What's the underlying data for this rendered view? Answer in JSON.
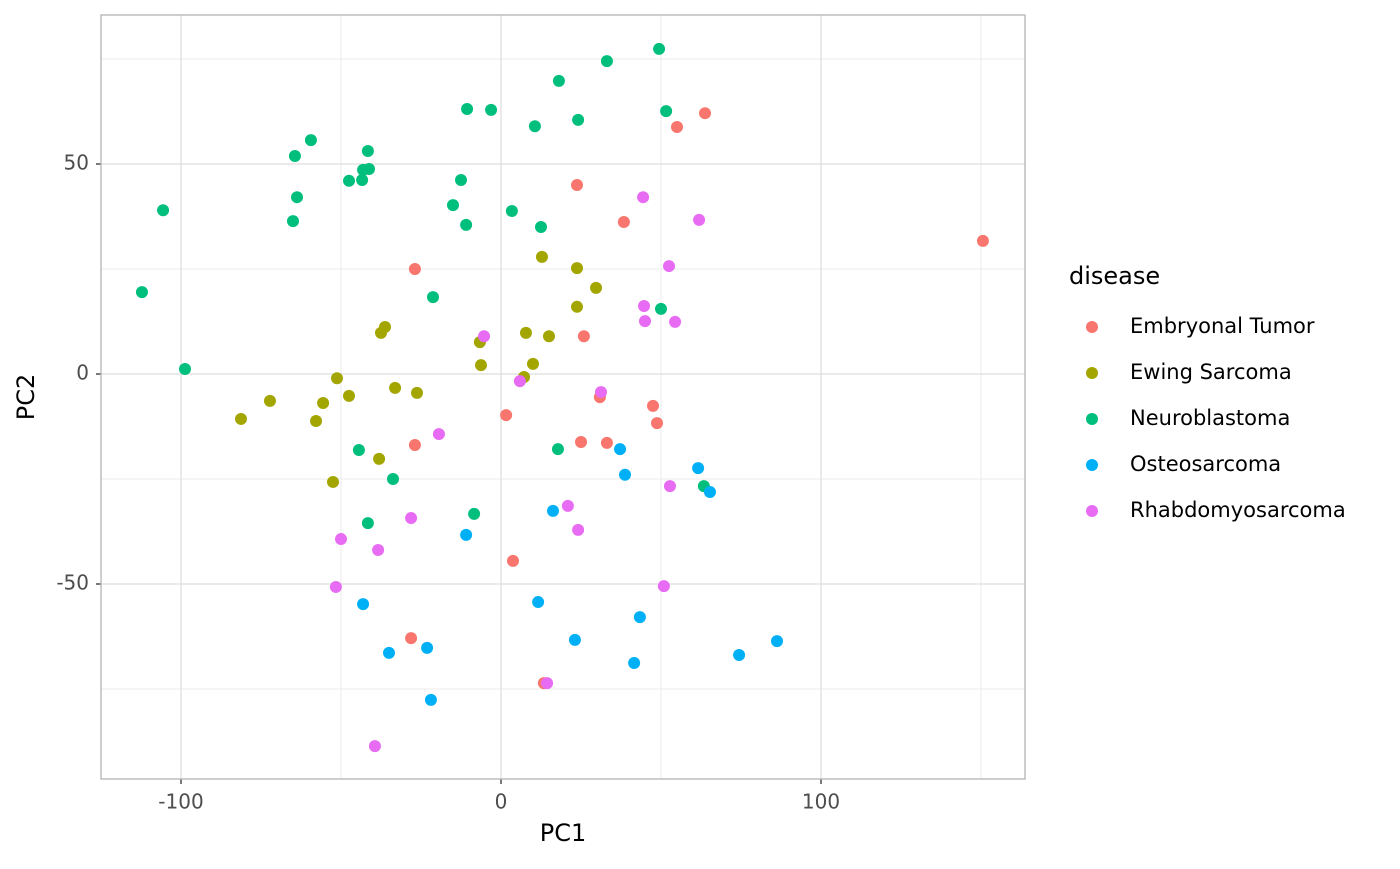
{
  "chart_data": {
    "type": "scatter",
    "x_label": "PC1",
    "y_label": "PC2",
    "legend_title": "disease",
    "legend": "right",
    "xlim": [
      -125,
      163.75
    ],
    "ylim": [
      -96.43,
      85.48
    ],
    "xticks": [
      -100,
      0,
      100
    ],
    "yticks": [
      -50,
      0,
      50
    ],
    "x_minor_grid": [
      -50,
      50,
      150
    ],
    "y_minor_grid": [
      -75,
      -25,
      25,
      75
    ],
    "grid": true,
    "series": [
      {
        "name": "Embryonal Tumor",
        "color": "#F8766D",
        "x": [
          63.75,
          55.0,
          23.75,
          38.4,
          150.6,
          -26.9,
          25.9,
          30.9,
          47.5,
          48.75,
          1.6,
          25.0,
          33.1,
          -26.9,
          3.75,
          -28.1,
          13.4
        ],
        "values": [
          62.1,
          58.8,
          45.0,
          36.2,
          31.7,
          25.0,
          9.0,
          -5.5,
          -7.6,
          -11.7,
          -9.8,
          -16.2,
          -16.4,
          -16.9,
          -44.5,
          -62.9,
          -73.6
        ]
      },
      {
        "name": "Ewing Sarcoma",
        "color": "#A3A500",
        "x": [
          12.8,
          23.75,
          29.7,
          23.75,
          -36.25,
          -37.5,
          7.8,
          15.0,
          -6.6,
          10.0,
          -6.25,
          7.2,
          -51.25,
          -33.1,
          -26.25,
          -47.5,
          -72.2,
          -55.6,
          -81.25,
          -57.8,
          -38.1,
          -52.5
        ],
        "values": [
          27.9,
          25.2,
          20.5,
          16.0,
          11.2,
          9.8,
          9.8,
          9.0,
          7.6,
          2.4,
          2.1,
          -0.7,
          -1.0,
          -3.3,
          -4.5,
          -5.2,
          -6.4,
          -6.9,
          -10.7,
          -11.2,
          -20.2,
          -25.7
        ]
      },
      {
        "name": "Neuroblastoma",
        "color": "#00BF7D",
        "x": [
          49.4,
          33.1,
          18.1,
          -10.6,
          -3.1,
          51.6,
          24.1,
          10.6,
          -59.4,
          -41.6,
          -64.4,
          -43.1,
          -41.25,
          -47.5,
          -43.4,
          -12.5,
          -63.75,
          -105.6,
          -15.0,
          3.4,
          -65.0,
          12.5,
          -10.9,
          -112.2,
          -21.25,
          50.0,
          -98.75,
          -44.4,
          17.8,
          -33.75,
          63.4,
          -8.4,
          -41.6
        ],
        "values": [
          77.4,
          74.5,
          69.8,
          63.1,
          62.9,
          62.6,
          60.5,
          59.0,
          55.7,
          53.1,
          51.9,
          48.6,
          48.8,
          46.0,
          46.2,
          46.2,
          42.1,
          39.0,
          40.2,
          38.8,
          36.4,
          35.0,
          35.5,
          19.5,
          18.3,
          15.5,
          1.2,
          -18.1,
          -17.9,
          -25.0,
          -26.7,
          -33.3,
          -35.5
        ]
      },
      {
        "name": "Osteosarcoma",
        "color": "#00B0F6",
        "x": [
          37.2,
          38.75,
          61.6,
          65.3,
          16.25,
          -10.9,
          -43.1,
          11.6,
          43.4,
          23.1,
          -35.0,
          -23.1,
          41.6,
          74.4,
          86.25,
          -21.9
        ],
        "values": [
          -17.9,
          -24.0,
          -22.4,
          -28.1,
          -32.6,
          -38.3,
          -54.8,
          -54.3,
          -57.9,
          -63.3,
          -66.4,
          -65.2,
          -68.8,
          -66.9,
          -63.6,
          -77.6
        ]
      },
      {
        "name": "Rhabdomyosarcoma",
        "color": "#E76BF3",
        "x": [
          44.4,
          61.9,
          52.5,
          44.7,
          -5.3,
          45.0,
          54.4,
          5.9,
          31.25,
          -19.4,
          52.8,
          20.9,
          -28.1,
          24.1,
          -50.0,
          -38.4,
          -51.6,
          50.9,
          14.4,
          -39.4
        ],
        "values": [
          42.1,
          36.7,
          25.7,
          16.2,
          9.0,
          12.6,
          12.4,
          -1.7,
          -4.3,
          -14.3,
          -26.7,
          -31.4,
          -34.3,
          -37.1,
          -39.3,
          -41.9,
          -50.7,
          -50.5,
          -73.6,
          -88.6
        ]
      }
    ]
  }
}
